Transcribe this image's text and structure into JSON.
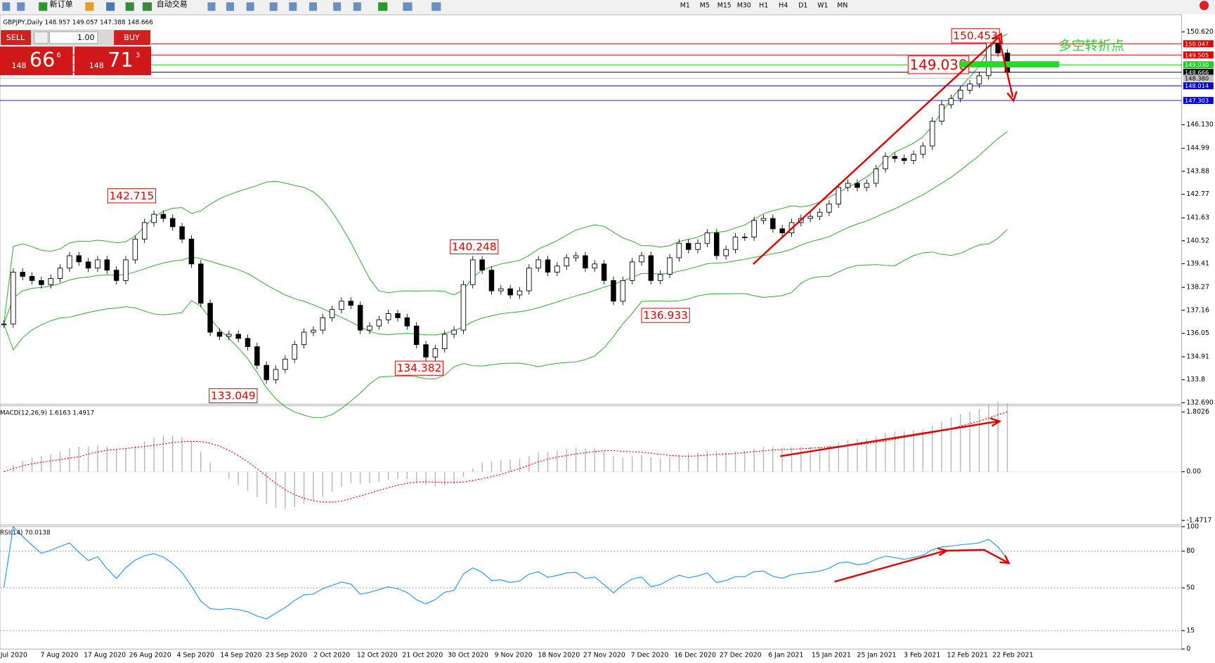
{
  "toolbar": {
    "new_order": "新订单",
    "auto_trade": "自动交易",
    "timeframes": [
      "M1",
      "M5",
      "M15",
      "M30",
      "H1",
      "H4",
      "D1",
      "W1",
      "MN"
    ]
  },
  "trade_panel": {
    "sell": "SELL",
    "buy": "BUY",
    "lots": "1.00",
    "bid_big": "148",
    "bid_pips": "66",
    "bid_frac": "6",
    "ask_big": "148",
    "ask_pips": "71",
    "ask_frac": "3"
  },
  "chart_data": [
    {
      "type": "candlestick",
      "title": "GBPJPY,Daily 148.957 149.057 147.388 148.666",
      "x_labels": [
        "Jul 2020",
        "7 Aug 2020",
        "17 Aug 2020",
        "26 Aug 2020",
        "4 Sep 2020",
        "14 Sep 2020",
        "23 Sep 2020",
        "2 Oct 2020",
        "12 Oct 2020",
        "21 Oct 2020",
        "30 Oct 2020",
        "9 Nov 2020",
        "18 Nov 2020",
        "27 Nov 2020",
        "7 Dec 2020",
        "16 Dec 2020",
        "27 Dec 2020",
        "6 Jan 2021",
        "15 Jan 2021",
        "25 Jan 2021",
        "3 Feb 2021",
        "12 Feb 2021",
        "22 Feb 2021"
      ],
      "close": [
        136.5,
        139.0,
        138.8,
        138.6,
        138.4,
        138.7,
        139.2,
        139.8,
        139.5,
        139.2,
        139.6,
        139.1,
        138.6,
        139.6,
        140.6,
        141.4,
        141.8,
        141.6,
        141.2,
        140.6,
        139.4,
        137.5,
        136.1,
        135.9,
        136.0,
        135.8,
        135.4,
        134.5,
        133.8,
        134.3,
        134.8,
        135.5,
        136.1,
        136.2,
        136.8,
        137.2,
        137.6,
        137.4,
        136.2,
        136.4,
        136.7,
        137.0,
        136.8,
        136.4,
        135.5,
        134.9,
        135.3,
        136.0,
        136.2,
        138.4,
        139.6,
        139.1,
        138.1,
        138.2,
        137.9,
        138.1,
        139.2,
        139.6,
        139.0,
        139.3,
        139.7,
        139.8,
        139.2,
        139.4,
        138.6,
        137.6,
        138.6,
        139.5,
        139.8,
        138.6,
        138.9,
        139.7,
        140.4,
        140.1,
        140.4,
        140.9,
        139.8,
        140.1,
        140.7,
        140.7,
        141.5,
        141.6,
        141.1,
        140.9,
        141.4,
        141.6,
        141.7,
        141.9,
        142.3,
        143.1,
        143.3,
        143.1,
        143.3,
        144.0,
        144.6,
        144.5,
        144.4,
        144.7,
        145.1,
        146.3,
        147.1,
        147.4,
        147.8,
        148.1,
        148.5,
        150.1,
        149.6,
        148.666
      ],
      "ylim": [
        132.615,
        151.41
      ],
      "yticks": [
        {
          "value": 150.62,
          "label": "150.620"
        },
        {
          "value": 146.13,
          "label": "146.130"
        },
        144.99,
        143.88,
        142.77,
        141.63,
        140.52,
        139.41,
        138.27,
        137.16,
        136.05,
        134.91,
        133.8,
        {
          "value": 132.69,
          "label": "132.690"
        }
      ],
      "price_tags": [
        {
          "value": 150.047,
          "color": "#e00000"
        },
        {
          "value": 149.505,
          "color": "#e00000"
        },
        {
          "value": 149.03,
          "label": "149.030",
          "color": "#22cc22"
        },
        {
          "value": 148.666,
          "color": "#000000"
        },
        {
          "value": 148.38,
          "label": "148.380",
          "color": "#c0c0c0"
        },
        {
          "value": 148.014,
          "color": "#0000dd"
        },
        {
          "value": 147.303,
          "color": "#0000dd"
        }
      ],
      "annotations": [
        150.453,
        {
          "value": 149.03,
          "label": "149.030"
        },
        142.715,
        140.248,
        136.933,
        134.382,
        133.049
      ],
      "note": "多空转折点"
    },
    {
      "type": "macd",
      "title": "MACD(12,26,9) 1.6163 1.4917",
      "ylim": [
        -1.612,
        1.99
      ],
      "yticks": [
        1.8026,
        {
          "value": 0,
          "label": "0.00"
        },
        -1.4717
      ]
    },
    {
      "type": "rsi",
      "title": "RSI(14) 70.0138",
      "ylim": [
        0,
        100
      ],
      "yticks": [
        100,
        80,
        50,
        15,
        0
      ]
    }
  ]
}
